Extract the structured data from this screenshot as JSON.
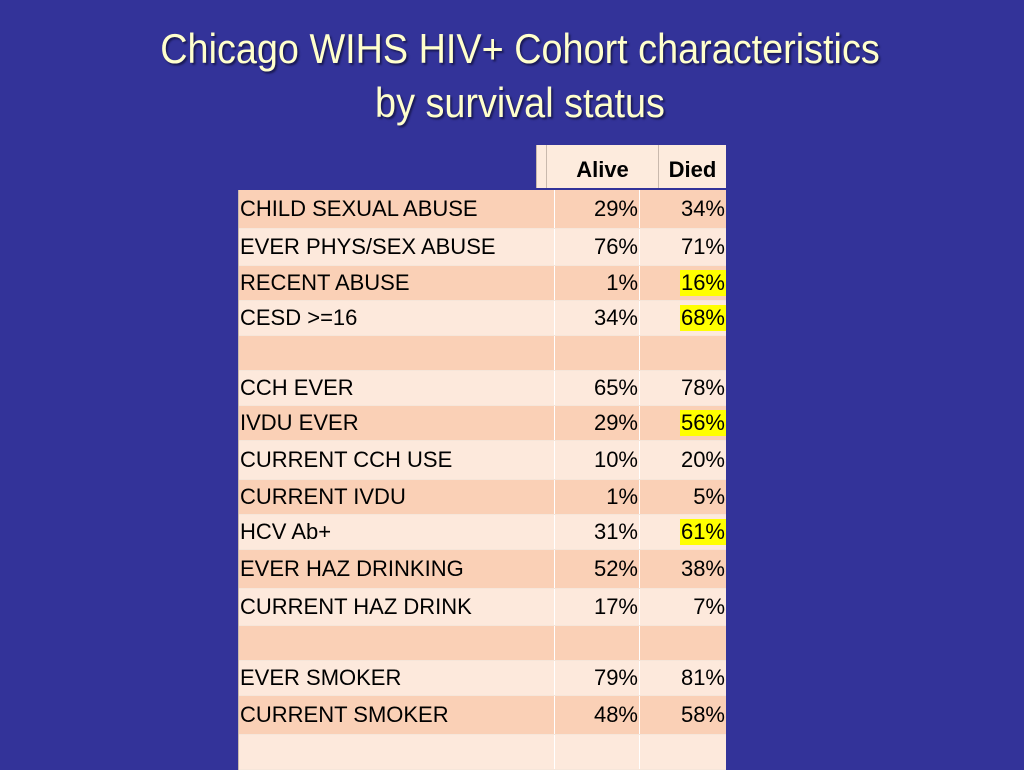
{
  "title": {
    "line1": "Chicago WIHS HIV+ Cohort  characteristics",
    "line2": "by survival status"
  },
  "header": {
    "alive": "Alive",
    "died": "Died"
  },
  "colors": {
    "background": "#333399",
    "title": "#ffffcc",
    "row_odd": "#fad0b6",
    "row_even": "#fde9dc",
    "highlight": "#ffff00"
  },
  "rows": [
    {
      "label": "CHILD SEXUAL ABUSE",
      "alive": "29%",
      "died": "34%",
      "highlight": false
    },
    {
      "label": "EVER PHYS/SEX ABUSE",
      "alive": "76%",
      "died": "71%",
      "highlight": false
    },
    {
      "label": "RECENT ABUSE",
      "alive": "1%",
      "died": "16%",
      "highlight": true
    },
    {
      "label": "CESD >=16",
      "alive": "34%",
      "died": "68%",
      "highlight": true
    },
    {
      "label": "",
      "alive": "",
      "died": "",
      "highlight": false
    },
    {
      "label": "CCH EVER",
      "alive": "65%",
      "died": "78%",
      "highlight": false
    },
    {
      "label": "IVDU EVER",
      "alive": "29%",
      "died": "56%",
      "highlight": true
    },
    {
      "label": "CURRENT CCH USE",
      "alive": "10%",
      "died": "20%",
      "highlight": false
    },
    {
      "label": "CURRENT IVDU",
      "alive": "1%",
      "died": "5%",
      "highlight": false
    },
    {
      "label": "HCV Ab+",
      "alive": "31%",
      "died": "61%",
      "highlight": true
    },
    {
      "label": "EVER HAZ DRINKING",
      "alive": "52%",
      "died": "38%",
      "highlight": false
    },
    {
      "label": "CURRENT HAZ DRINK",
      "alive": "17%",
      "died": "7%",
      "highlight": false
    },
    {
      "label": "",
      "alive": "",
      "died": "",
      "highlight": false
    },
    {
      "label": "EVER SMOKER",
      "alive": "79%",
      "died": "81%",
      "highlight": false
    },
    {
      "label": "CURRENT SMOKER",
      "alive": "48%",
      "died": "58%",
      "highlight": false
    },
    {
      "label": "",
      "alive": "",
      "died": "",
      "highlight": false
    }
  ]
}
